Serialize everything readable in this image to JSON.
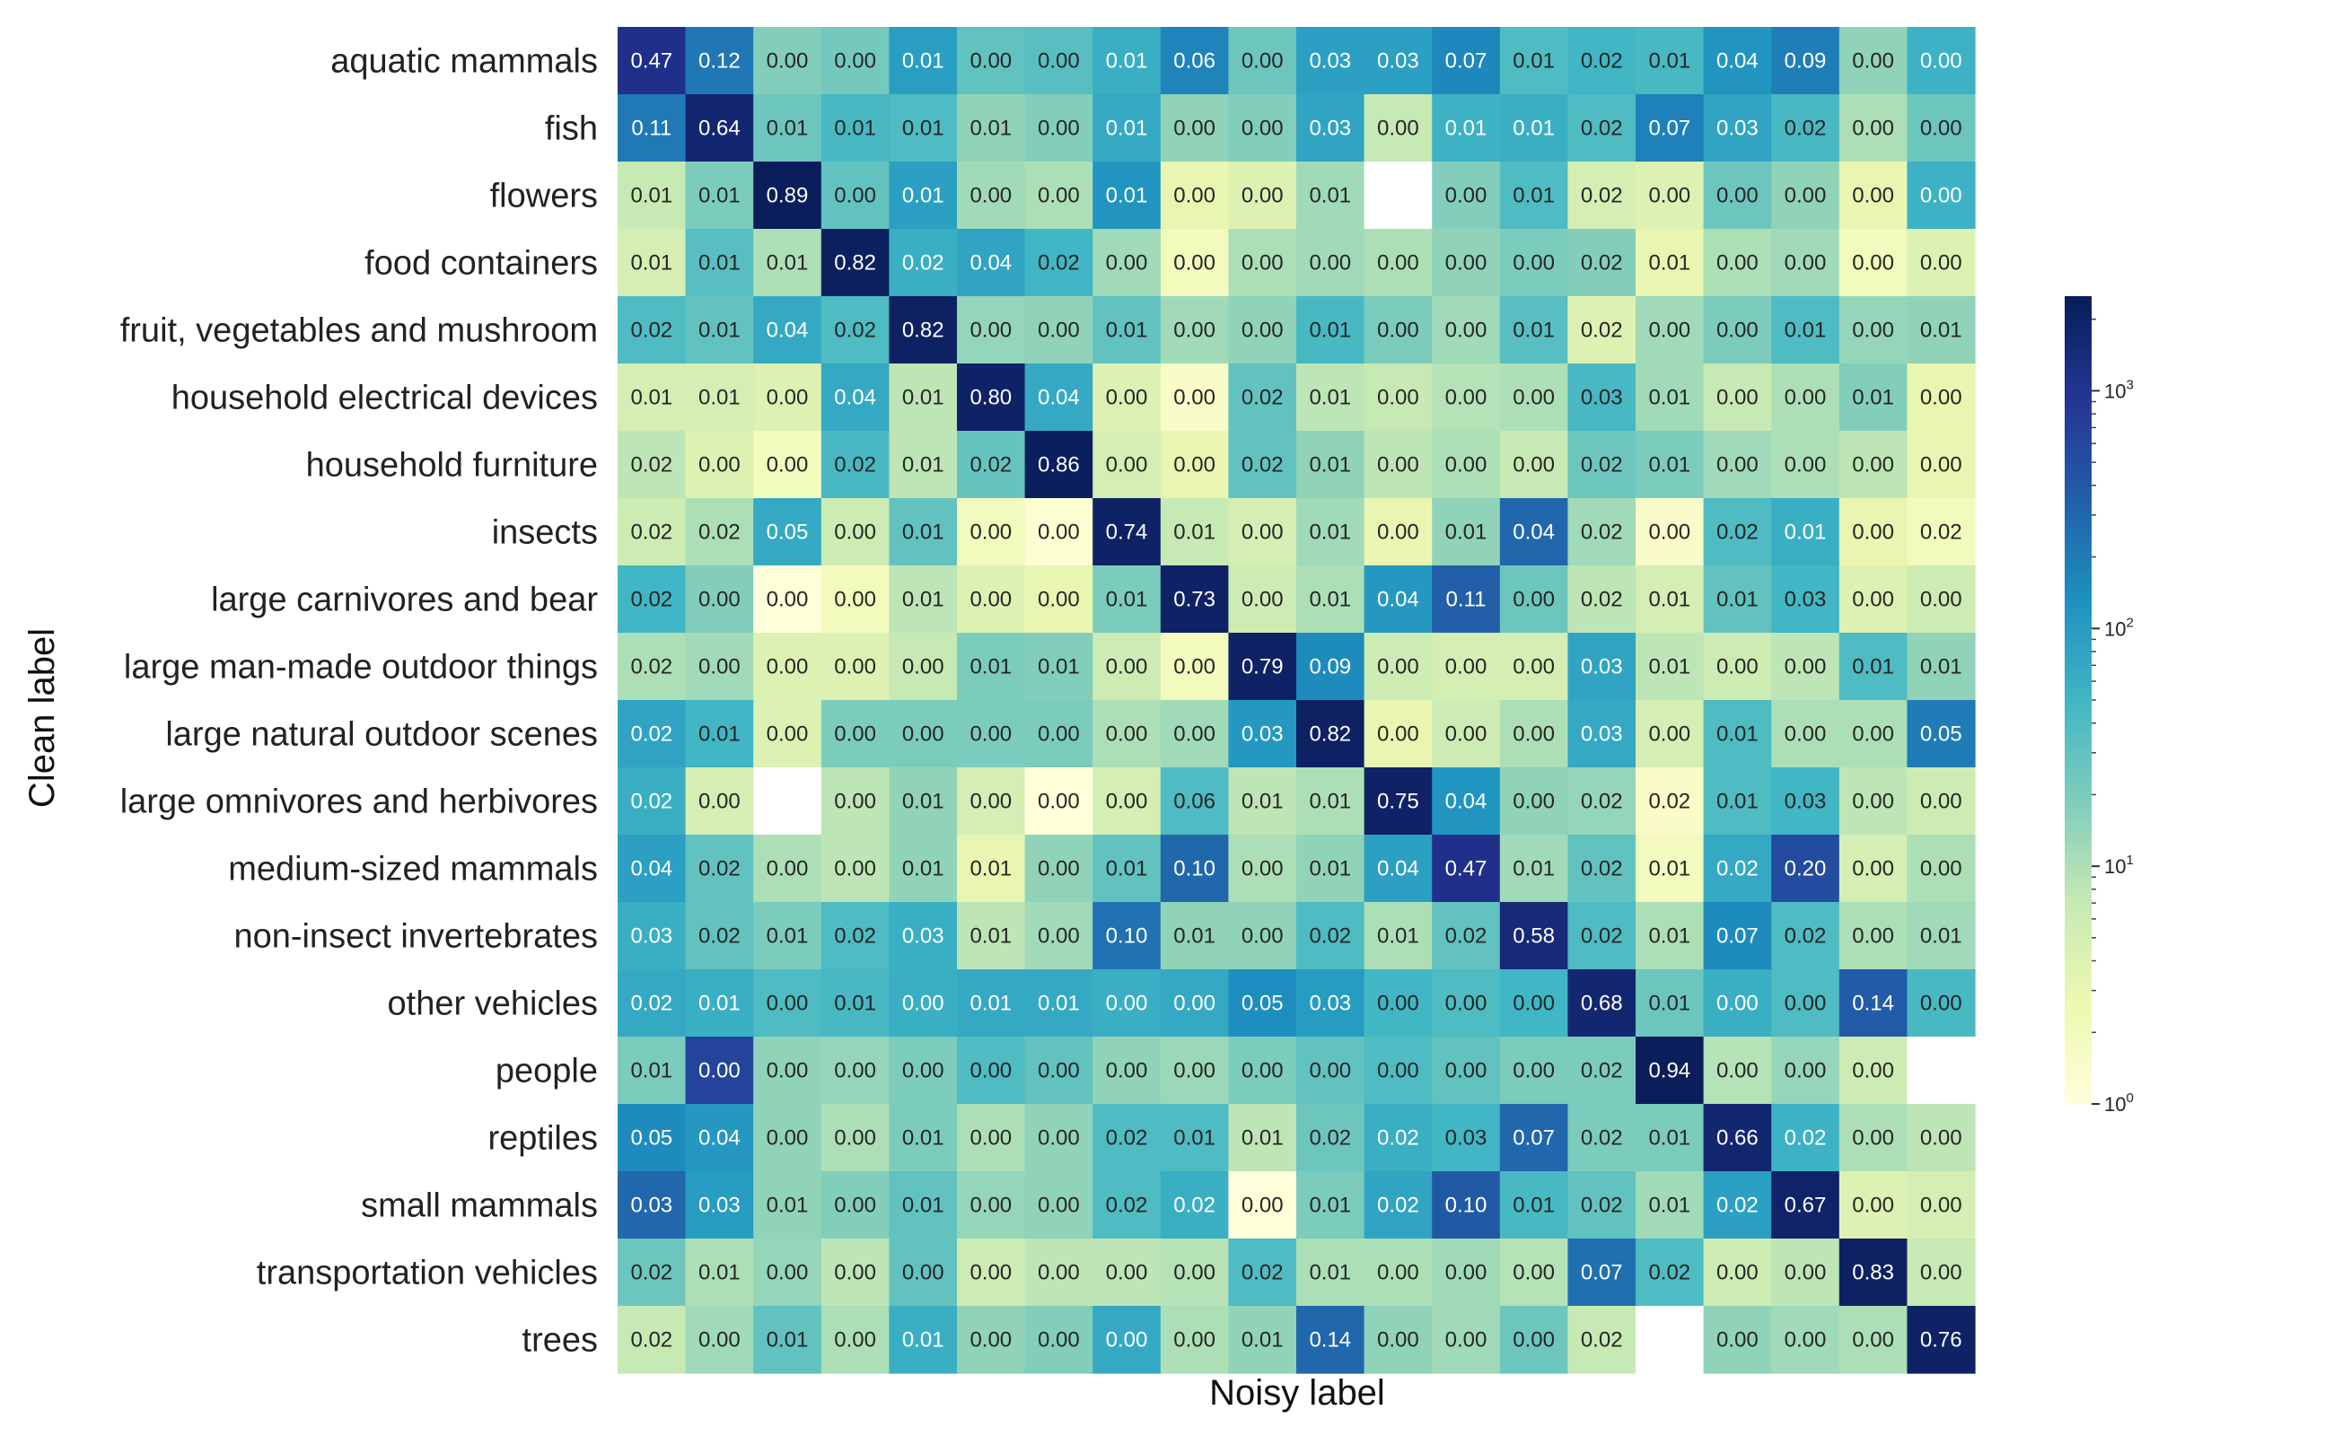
{
  "chart_data": {
    "type": "heatmap",
    "title": "",
    "xlabel": "Noisy label",
    "ylabel": "Clean label",
    "color_scale": "log",
    "colormap": "YlGnBu",
    "colorbar_ticks": [
      {
        "base": "10",
        "exp": "0",
        "value": 1
      },
      {
        "base": "10",
        "exp": "1",
        "value": 10
      },
      {
        "base": "10",
        "exp": "2",
        "value": 100
      },
      {
        "base": "10",
        "exp": "3",
        "value": 1000
      }
    ],
    "colorbar_range": [
      1,
      2500
    ],
    "row_labels": [
      "aquatic mammals",
      "fish",
      "flowers",
      "food containers",
      "fruit, vegetables and mushroom",
      "household electrical devices",
      "household furniture",
      "insects",
      "large carnivores and bear",
      "large man-made outdoor things",
      "large natural outdoor scenes",
      "large omnivores and herbivores",
      "medium-sized mammals",
      "non-insect invertebrates",
      "other vehicles",
      "people",
      "reptiles",
      "small mammals",
      "transportation vehicles",
      "trees"
    ],
    "values": [
      [
        "0.47",
        "0.12",
        "0.00",
        "0.00",
        "0.01",
        "0.00",
        "0.00",
        "0.01",
        "0.06",
        "0.00",
        "0.03",
        "0.03",
        "0.07",
        "0.01",
        "0.02",
        "0.01",
        "0.04",
        "0.09",
        "0.00",
        "0.00"
      ],
      [
        "0.11",
        "0.64",
        "0.01",
        "0.01",
        "0.01",
        "0.01",
        "0.00",
        "0.01",
        "0.00",
        "0.00",
        "0.03",
        "0.00",
        "0.01",
        "0.01",
        "0.02",
        "0.07",
        "0.03",
        "0.02",
        "0.00",
        "0.00"
      ],
      [
        "0.01",
        "0.01",
        "0.89",
        "0.00",
        "0.01",
        "0.00",
        "0.00",
        "0.01",
        "0.00",
        "0.00",
        "0.01",
        "",
        "0.00",
        "0.01",
        "0.02",
        "0.00",
        "0.00",
        "0.00",
        "0.00",
        "0.00"
      ],
      [
        "0.01",
        "0.01",
        "0.01",
        "0.82",
        "0.02",
        "0.04",
        "0.02",
        "0.00",
        "0.00",
        "0.00",
        "0.00",
        "0.00",
        "0.00",
        "0.00",
        "0.02",
        "0.01",
        "0.00",
        "0.00",
        "0.00",
        "0.00"
      ],
      [
        "0.02",
        "0.01",
        "0.04",
        "0.02",
        "0.82",
        "0.00",
        "0.00",
        "0.01",
        "0.00",
        "0.00",
        "0.01",
        "0.00",
        "0.00",
        "0.01",
        "0.02",
        "0.00",
        "0.00",
        "0.01",
        "0.00",
        "0.01"
      ],
      [
        "0.01",
        "0.01",
        "0.00",
        "0.04",
        "0.01",
        "0.80",
        "0.04",
        "0.00",
        "0.00",
        "0.02",
        "0.01",
        "0.00",
        "0.00",
        "0.00",
        "0.03",
        "0.01",
        "0.00",
        "0.00",
        "0.01",
        "0.00"
      ],
      [
        "0.02",
        "0.00",
        "0.00",
        "0.02",
        "0.01",
        "0.02",
        "0.86",
        "0.00",
        "0.00",
        "0.02",
        "0.01",
        "0.00",
        "0.00",
        "0.00",
        "0.02",
        "0.01",
        "0.00",
        "0.00",
        "0.00",
        "0.00"
      ],
      [
        "0.02",
        "0.02",
        "0.05",
        "0.00",
        "0.01",
        "0.00",
        "0.00",
        "0.74",
        "0.01",
        "0.00",
        "0.01",
        "0.00",
        "0.01",
        "0.04",
        "0.02",
        "0.00",
        "0.02",
        "0.01",
        "0.00",
        "0.02"
      ],
      [
        "0.02",
        "0.00",
        "0.00",
        "0.00",
        "0.01",
        "0.00",
        "0.00",
        "0.01",
        "0.73",
        "0.00",
        "0.01",
        "0.04",
        "0.11",
        "0.00",
        "0.02",
        "0.01",
        "0.01",
        "0.03",
        "0.00",
        "0.00"
      ],
      [
        "0.02",
        "0.00",
        "0.00",
        "0.00",
        "0.00",
        "0.01",
        "0.01",
        "0.00",
        "0.00",
        "0.79",
        "0.09",
        "0.00",
        "0.00",
        "0.00",
        "0.03",
        "0.01",
        "0.00",
        "0.00",
        "0.01",
        "0.01"
      ],
      [
        "0.02",
        "0.01",
        "0.00",
        "0.00",
        "0.00",
        "0.00",
        "0.00",
        "0.00",
        "0.00",
        "0.03",
        "0.82",
        "0.00",
        "0.00",
        "0.00",
        "0.03",
        "0.00",
        "0.01",
        "0.00",
        "0.00",
        "0.05"
      ],
      [
        "0.02",
        "0.00",
        "",
        "0.00",
        "0.01",
        "0.00",
        "0.00",
        "0.00",
        "0.06",
        "0.01",
        "0.01",
        "0.75",
        "0.04",
        "0.00",
        "0.02",
        "0.02",
        "0.01",
        "0.03",
        "0.00",
        "0.00"
      ],
      [
        "0.04",
        "0.02",
        "0.00",
        "0.00",
        "0.01",
        "0.01",
        "0.00",
        "0.01",
        "0.10",
        "0.00",
        "0.01",
        "0.04",
        "0.47",
        "0.01",
        "0.02",
        "0.01",
        "0.02",
        "0.20",
        "0.00",
        "0.00"
      ],
      [
        "0.03",
        "0.02",
        "0.01",
        "0.02",
        "0.03",
        "0.01",
        "0.00",
        "0.10",
        "0.01",
        "0.00",
        "0.02",
        "0.01",
        "0.02",
        "0.58",
        "0.02",
        "0.01",
        "0.07",
        "0.02",
        "0.00",
        "0.01"
      ],
      [
        "0.02",
        "0.01",
        "0.00",
        "0.01",
        "0.00",
        "0.01",
        "0.01",
        "0.00",
        "0.00",
        "0.05",
        "0.03",
        "0.00",
        "0.00",
        "0.00",
        "0.68",
        "0.01",
        "0.00",
        "0.00",
        "0.14",
        "0.00"
      ],
      [
        "0.01",
        "0.00",
        "0.00",
        "0.00",
        "0.00",
        "0.00",
        "0.00",
        "0.00",
        "0.00",
        "0.00",
        "0.00",
        "0.00",
        "0.00",
        "0.00",
        "0.02",
        "0.94",
        "0.00",
        "0.00",
        "0.00",
        ""
      ],
      [
        "0.05",
        "0.04",
        "0.00",
        "0.00",
        "0.01",
        "0.00",
        "0.00",
        "0.02",
        "0.01",
        "0.01",
        "0.02",
        "0.02",
        "0.03",
        "0.07",
        "0.02",
        "0.01",
        "0.66",
        "0.02",
        "0.00",
        "0.00"
      ],
      [
        "0.03",
        "0.03",
        "0.01",
        "0.00",
        "0.01",
        "0.00",
        "0.00",
        "0.02",
        "0.02",
        "0.00",
        "0.01",
        "0.02",
        "0.10",
        "0.01",
        "0.02",
        "0.01",
        "0.02",
        "0.67",
        "0.00",
        "0.00"
      ],
      [
        "0.02",
        "0.01",
        "0.00",
        "0.00",
        "0.00",
        "0.00",
        "0.00",
        "0.00",
        "0.00",
        "0.02",
        "0.01",
        "0.00",
        "0.00",
        "0.00",
        "0.07",
        "0.02",
        "0.00",
        "0.00",
        "0.83",
        "0.00"
      ],
      [
        "0.02",
        "0.00",
        "0.01",
        "0.00",
        "0.01",
        "0.00",
        "0.00",
        "0.00",
        "0.00",
        "0.01",
        "0.14",
        "0.00",
        "0.00",
        "0.00",
        "0.02",
        "",
        "0.00",
        "0.00",
        "0.00",
        "0.76"
      ]
    ],
    "color_values": [
      [
        1100,
        220,
        18,
        22,
        95,
        30,
        35,
        60,
        170,
        25,
        90,
        90,
        160,
        40,
        50,
        45,
        120,
        190,
        15,
        55
      ],
      [
        210,
        1700,
        25,
        45,
        40,
        15,
        18,
        70,
        15,
        18,
        80,
        7,
        55,
        60,
        40,
        180,
        80,
        45,
        10,
        25
      ],
      [
        7,
        20,
        2400,
        30,
        90,
        12,
        10,
        120,
        3,
        4,
        12,
        0,
        18,
        40,
        5,
        4,
        25,
        15,
        3,
        55
      ],
      [
        5,
        35,
        10,
        2200,
        60,
        80,
        50,
        12,
        2,
        10,
        12,
        10,
        15,
        20,
        18,
        3,
        10,
        12,
        2,
        4
      ],
      [
        40,
        30,
        70,
        40,
        2100,
        14,
        15,
        30,
        12,
        15,
        45,
        20,
        12,
        35,
        4,
        12,
        20,
        40,
        14,
        15
      ],
      [
        5,
        5,
        4,
        70,
        8,
        2000,
        70,
        4,
        1.5,
        30,
        8,
        7,
        9,
        10,
        45,
        12,
        7,
        10,
        18,
        3
      ],
      [
        8,
        4,
        2,
        45,
        8,
        28,
        2300,
        5,
        3,
        30,
        15,
        8,
        10,
        7,
        25,
        20,
        12,
        10,
        8,
        3
      ],
      [
        6,
        10,
        70,
        6,
        30,
        2,
        1.2,
        2000,
        7,
        5,
        12,
        3,
        15,
        300,
        12,
        1.5,
        40,
        60,
        3,
        2
      ],
      [
        50,
        18,
        1,
        2,
        8,
        4,
        3,
        20,
        2000,
        6,
        10,
        110,
        350,
        25,
        8,
        5,
        30,
        50,
        4,
        6
      ],
      [
        10,
        12,
        4,
        4,
        7,
        20,
        18,
        6,
        2,
        2000,
        150,
        6,
        5,
        5,
        80,
        8,
        6,
        8,
        40,
        15
      ],
      [
        80,
        50,
        4,
        20,
        20,
        20,
        20,
        10,
        12,
        110,
        2100,
        3,
        6,
        10,
        70,
        5,
        40,
        10,
        10,
        200
      ],
      [
        60,
        5,
        0,
        8,
        15,
        5,
        1,
        5,
        40,
        8,
        10,
        2000,
        120,
        15,
        14,
        1.5,
        40,
        50,
        8,
        6
      ],
      [
        90,
        30,
        10,
        8,
        15,
        3,
        15,
        30,
        300,
        10,
        15,
        90,
        1100,
        12,
        30,
        2,
        70,
        550,
        5,
        10
      ],
      [
        60,
        30,
        20,
        40,
        60,
        8,
        12,
        240,
        15,
        15,
        40,
        10,
        30,
        1500,
        40,
        10,
        150,
        40,
        10,
        12
      ],
      [
        70,
        60,
        40,
        45,
        60,
        70,
        70,
        60,
        70,
        140,
        100,
        50,
        40,
        50,
        1700,
        25,
        60,
        40,
        380,
        45
      ],
      [
        20,
        650,
        15,
        14,
        20,
        40,
        30,
        15,
        13,
        20,
        30,
        40,
        30,
        20,
        20,
        2400,
        9,
        14,
        6,
        0
      ],
      [
        150,
        110,
        15,
        10,
        20,
        10,
        15,
        40,
        40,
        8,
        25,
        60,
        50,
        300,
        20,
        20,
        1700,
        55,
        10,
        8
      ],
      [
        300,
        100,
        15,
        18,
        30,
        14,
        15,
        40,
        60,
        1,
        20,
        80,
        400,
        45,
        30,
        12,
        90,
        1900,
        4,
        5
      ],
      [
        25,
        10,
        14,
        8,
        30,
        6,
        8,
        8,
        9,
        40,
        10,
        10,
        12,
        9,
        250,
        40,
        6,
        8,
        2100,
        7
      ],
      [
        7,
        12,
        30,
        10,
        60,
        15,
        18,
        70,
        10,
        15,
        300,
        15,
        12,
        25,
        7,
        0,
        15,
        12,
        10,
        2000
      ]
    ]
  }
}
